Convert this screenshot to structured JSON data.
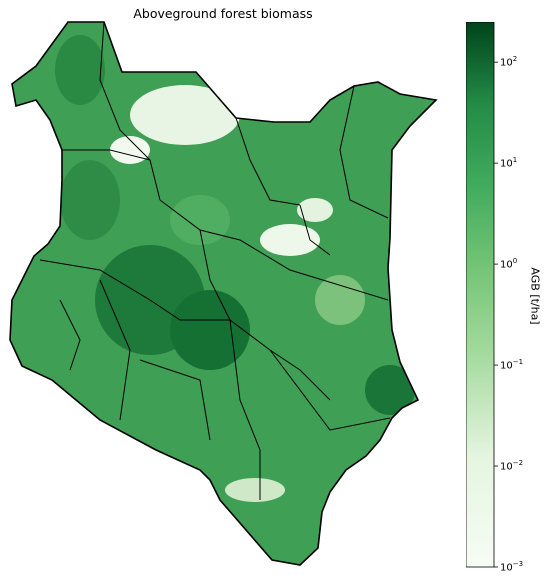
{
  "title": "Aboveground forest biomass",
  "colorbar": {
    "label": "AGB [t/ha]",
    "scale": "log",
    "range": [
      0.001,
      250
    ],
    "colormap": "Greens",
    "color_low": "#f7fcf5",
    "color_high": "#00441b",
    "ticks": [
      {
        "value": 100,
        "base": "10",
        "exp": "2"
      },
      {
        "value": 10,
        "base": "10",
        "exp": "1"
      },
      {
        "value": 1,
        "base": "10",
        "exp": "0"
      },
      {
        "value": 0.1,
        "base": "10",
        "exp": "−1"
      },
      {
        "value": 0.01,
        "base": "10",
        "exp": "−2"
      },
      {
        "value": 0.001,
        "base": "10",
        "exp": "−3"
      }
    ]
  },
  "map": {
    "region": "Kenya",
    "boundaries": "county/sub-county borders",
    "border_color": "#000000",
    "fill_color_dominant": "#3f9f55"
  }
}
